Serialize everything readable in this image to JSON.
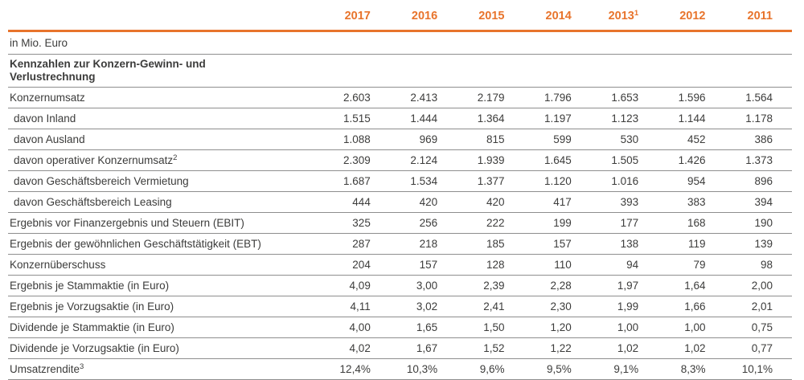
{
  "document": {
    "unit_label": "in Mio. Euro",
    "section_header": "Kennzahlen zur Konzern-Gewinn- und Verlustrechnung"
  },
  "colors": {
    "accent_orange": "#e8742c",
    "text_dark": "#3c3c3b",
    "border_gray": "#8e8e8e",
    "background": "#ffffff"
  },
  "columns": [
    {
      "label": "2017"
    },
    {
      "label": "2016"
    },
    {
      "label": "2015"
    },
    {
      "label": "2014"
    },
    {
      "label": "2013",
      "sup": "1"
    },
    {
      "label": "2012"
    },
    {
      "label": "2011"
    }
  ],
  "rows": [
    {
      "label": "Konzernumsatz",
      "values": [
        "2.603",
        "2.413",
        "2.179",
        "1.796",
        "1.653",
        "1.596",
        "1.564"
      ]
    },
    {
      "label": "davon Inland",
      "values": [
        "1.515",
        "1.444",
        "1.364",
        "1.197",
        "1.123",
        "1.144",
        "1.178"
      ]
    },
    {
      "label": "davon Ausland",
      "values": [
        "1.088",
        "969",
        "815",
        "599",
        "530",
        "452",
        "386"
      ]
    },
    {
      "label": "davon operativer Konzernumsatz",
      "sup": "2",
      "values": [
        "2.309",
        "2.124",
        "1.939",
        "1.645",
        "1.505",
        "1.426",
        "1.373"
      ]
    },
    {
      "label": "davon Geschäftsbereich Vermietung",
      "values": [
        "1.687",
        "1.534",
        "1.377",
        "1.120",
        "1.016",
        "954",
        "896"
      ]
    },
    {
      "label": "davon Geschäftsbereich Leasing",
      "values": [
        "444",
        "420",
        "420",
        "417",
        "393",
        "383",
        "394"
      ]
    },
    {
      "label": "Ergebnis vor Finanzergebnis und Steuern (EBIT)",
      "values": [
        "325",
        "256",
        "222",
        "199",
        "177",
        "168",
        "190"
      ]
    },
    {
      "label": "Ergebnis der gewöhnlichen Geschäftstätigkeit (EBT)",
      "values": [
        "287",
        "218",
        "185",
        "157",
        "138",
        "119",
        "139"
      ]
    },
    {
      "label": "Konzernüberschuss",
      "values": [
        "204",
        "157",
        "128",
        "110",
        "94",
        "79",
        "98"
      ]
    },
    {
      "label": "Ergebnis je Stammaktie (in Euro)",
      "values": [
        "4,09",
        "3,00",
        "2,39",
        "2,28",
        "1,97",
        "1,64",
        "2,00"
      ]
    },
    {
      "label": "Ergebnis je Vorzugsaktie (in Euro)",
      "values": [
        "4,11",
        "3,02",
        "2,41",
        "2,30",
        "1,99",
        "1,66",
        "2,01"
      ]
    },
    {
      "label": "Dividende je Stammaktie (in Euro)",
      "values": [
        "4,00",
        "1,65",
        "1,50",
        "1,20",
        "1,00",
        "1,00",
        "0,75"
      ]
    },
    {
      "label": "Dividende je Vorzugsaktie (in Euro)",
      "values": [
        "4,02",
        "1,67",
        "1,52",
        "1,22",
        "1,02",
        "1,02",
        "0,77"
      ]
    },
    {
      "label": "Umsatzrendite",
      "sup": "3",
      "values": [
        "12,4%",
        "10,3%",
        "9,6%",
        "9,5%",
        "9,1%",
        "8,3%",
        "10,1%"
      ]
    }
  ]
}
